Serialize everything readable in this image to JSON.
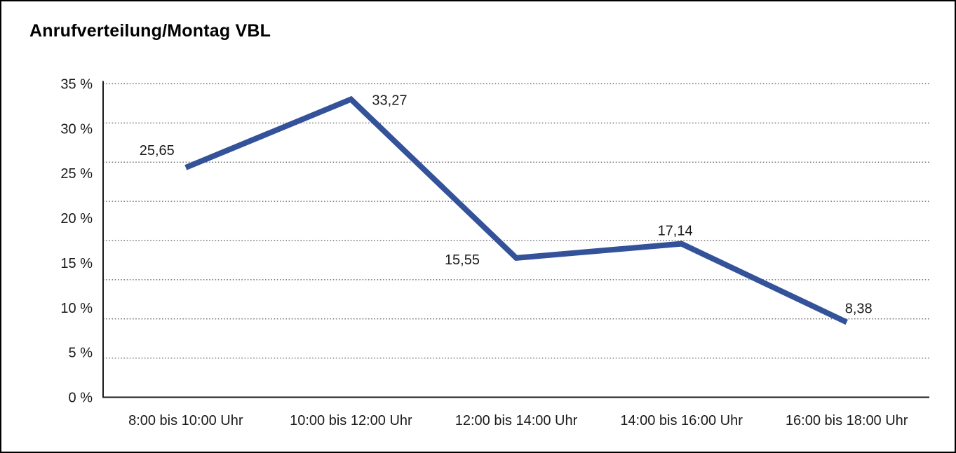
{
  "title": "Anrufverteilung/Montag VBL",
  "frame": {
    "background": "#ffffff",
    "border_color": "#000000"
  },
  "chart_data": {
    "type": "line",
    "title": "Anrufverteilung/Montag VBL",
    "categories": [
      "8:00 bis 10:00 Uhr",
      "10:00 bis 12:00 Uhr",
      "12:00 bis 14:00 Uhr",
      "14:00 bis 16:00 Uhr",
      "16:00 bis 18:00 Uhr"
    ],
    "values": [
      25.65,
      33.27,
      15.55,
      17.14,
      8.38
    ],
    "value_labels": [
      "25,65",
      "33,27",
      "15,55",
      "17,14",
      "8,38"
    ],
    "xlabel": "",
    "ylabel": "",
    "ylim": [
      0,
      35
    ],
    "y_tick_values": [
      35,
      30,
      25,
      20,
      15,
      10,
      5,
      0
    ],
    "y_tick_labels": [
      "35 %",
      "30 %",
      "25 %",
      "20 %",
      "15 %",
      "10 %",
      "5 %",
      "0 %"
    ],
    "grid": "horizontal dotted, 8 equal intervals",
    "legend": "none",
    "line_color": "#34529A",
    "axis_color": "#1a1a1a",
    "gridline_color": "#5a5a5a",
    "text_color": "#1a1a1a"
  }
}
